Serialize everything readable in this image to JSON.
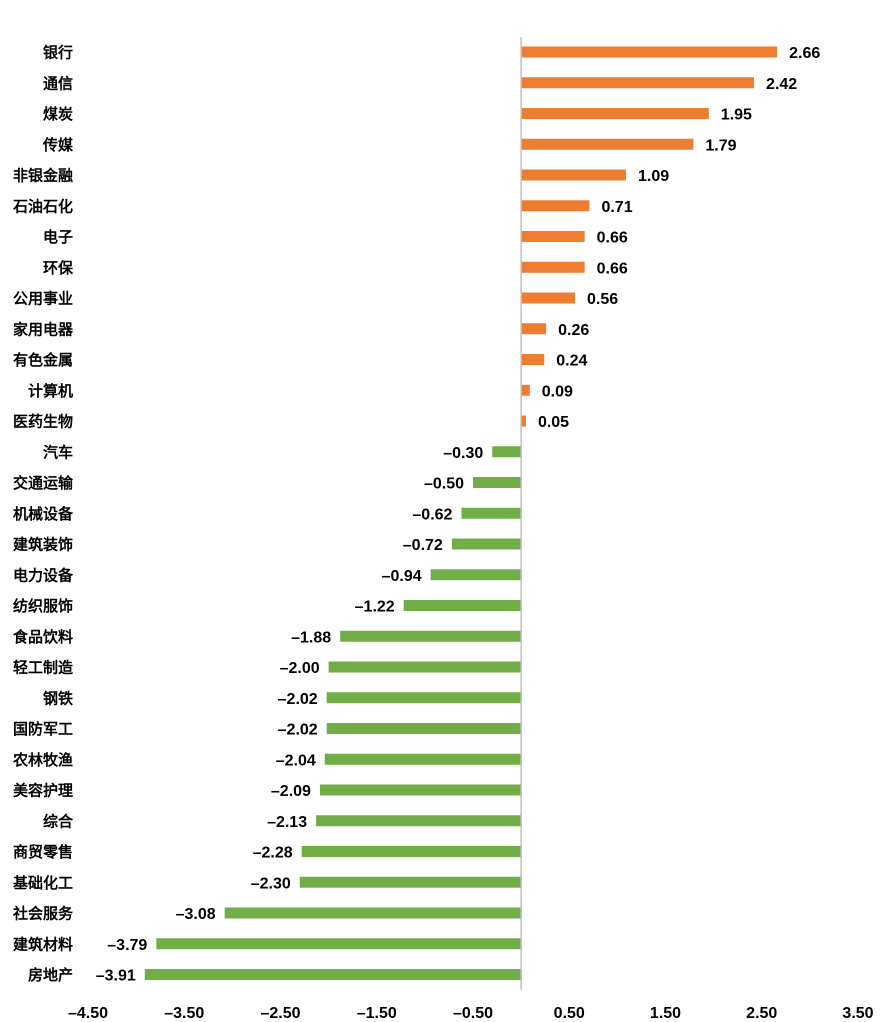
{
  "chart_data": {
    "type": "bar",
    "orientation": "horizontal",
    "categories": [
      "银行",
      "通信",
      "煤炭",
      "传媒",
      "非银金融",
      "石油石化",
      "电子",
      "环保",
      "公用事业",
      "家用电器",
      "有色金属",
      "计算机",
      "医药生物",
      "汽车",
      "交通运输",
      "机械设备",
      "建筑装饰",
      "电力设备",
      "纺织服饰",
      "食品饮料",
      "轻工制造",
      "钢铁",
      "国防军工",
      "农林牧渔",
      "美容护理",
      "综合",
      "商贸零售",
      "基础化工",
      "社会服务",
      "建筑材料",
      "房地产"
    ],
    "values": [
      2.66,
      2.42,
      1.95,
      1.79,
      1.09,
      0.71,
      0.66,
      0.66,
      0.56,
      0.26,
      0.24,
      0.09,
      0.05,
      -0.3,
      -0.5,
      -0.62,
      -0.72,
      -0.94,
      -1.22,
      -1.88,
      -2.0,
      -2.02,
      -2.02,
      -2.04,
      -2.09,
      -2.13,
      -2.28,
      -2.3,
      -3.08,
      -3.79,
      -3.91
    ],
    "value_labels": [
      "2.66",
      "2.42",
      "1.95",
      "1.79",
      "1.09",
      "0.71",
      "0.66",
      "0.66",
      "0.56",
      "0.26",
      "0.24",
      "0.09",
      "0.05",
      "–0.30",
      "–0.50",
      "–0.62",
      "–0.72",
      "–0.94",
      "–1.22",
      "–1.88",
      "–2.00",
      "–2.02",
      "–2.02",
      "–2.04",
      "–2.09",
      "–2.13",
      "–2.28",
      "–2.30",
      "–3.08",
      "–3.79",
      "–3.91"
    ],
    "xlim": [
      -4.5,
      3.5
    ],
    "x_ticks": [
      -4.5,
      -3.5,
      -2.5,
      -1.5,
      -0.5,
      0.5,
      1.5,
      2.5,
      3.5
    ],
    "x_tick_labels": [
      "–4.50",
      "–3.50",
      "–2.50",
      "–1.50",
      "–0.50",
      "0.50",
      "1.50",
      "2.50",
      "3.50"
    ],
    "grid": false,
    "legend": "none",
    "colors": {
      "positive": "#ED7D31",
      "negative": "#70AD47",
      "axis": "#BFBFBF"
    }
  }
}
